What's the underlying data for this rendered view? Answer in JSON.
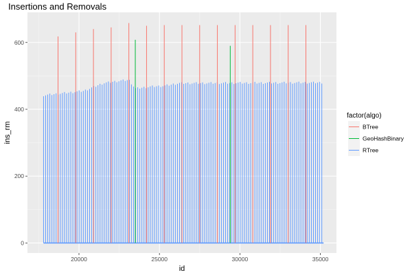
{
  "chart_data": {
    "type": "line",
    "title": "Insertions and Removals",
    "xlabel": "id",
    "ylabel": "ins_rm",
    "xlim": [
      16800,
      36000
    ],
    "ylim": [
      -30,
      690
    ],
    "x_ticks": [
      20000,
      25000,
      30000,
      35000
    ],
    "x_tick_labels": [
      "20000",
      "25000",
      "30000",
      "35000"
    ],
    "y_ticks": [
      0,
      200,
      400,
      600
    ],
    "y_tick_labels": [
      "0",
      "200",
      "400",
      "600"
    ],
    "grid": true,
    "legend": {
      "title": "factor(algo)",
      "position": "right",
      "entries": [
        "BTree",
        "GeoHashBinary",
        "RTree"
      ]
    },
    "series": [
      {
        "name": "BTree",
        "color": "#F8766D",
        "spikes": [
          {
            "x": 18700,
            "y": 618
          },
          {
            "x": 19800,
            "y": 630
          },
          {
            "x": 20900,
            "y": 640
          },
          {
            "x": 22000,
            "y": 645
          },
          {
            "x": 23100,
            "y": 658
          },
          {
            "x": 24200,
            "y": 650
          },
          {
            "x": 25300,
            "y": 652
          },
          {
            "x": 26400,
            "y": 652
          },
          {
            "x": 27500,
            "y": 652
          },
          {
            "x": 28600,
            "y": 652
          },
          {
            "x": 29700,
            "y": 652
          },
          {
            "x": 30800,
            "y": 652
          },
          {
            "x": 31900,
            "y": 652
          },
          {
            "x": 33000,
            "y": 652
          },
          {
            "x": 34100,
            "y": 652
          }
        ]
      },
      {
        "name": "GeoHashBinary",
        "color": "#00BA38",
        "spikes": [
          {
            "x": 23500,
            "y": 608
          },
          {
            "x": 29400,
            "y": 590
          }
        ]
      },
      {
        "name": "RTree",
        "color": "#619CFF",
        "x_start": 17800,
        "x_end": 35200,
        "step": 130,
        "profile": [
          {
            "x": 17800,
            "y": 442
          },
          {
            "x": 19000,
            "y": 448
          },
          {
            "x": 20300,
            "y": 455
          },
          {
            "x": 21500,
            "y": 478
          },
          {
            "x": 22500,
            "y": 485
          },
          {
            "x": 23100,
            "y": 488
          },
          {
            "x": 23500,
            "y": 462
          },
          {
            "x": 24500,
            "y": 468
          },
          {
            "x": 25300,
            "y": 470
          },
          {
            "x": 26200,
            "y": 478
          },
          {
            "x": 35200,
            "y": 480
          }
        ]
      }
    ]
  }
}
